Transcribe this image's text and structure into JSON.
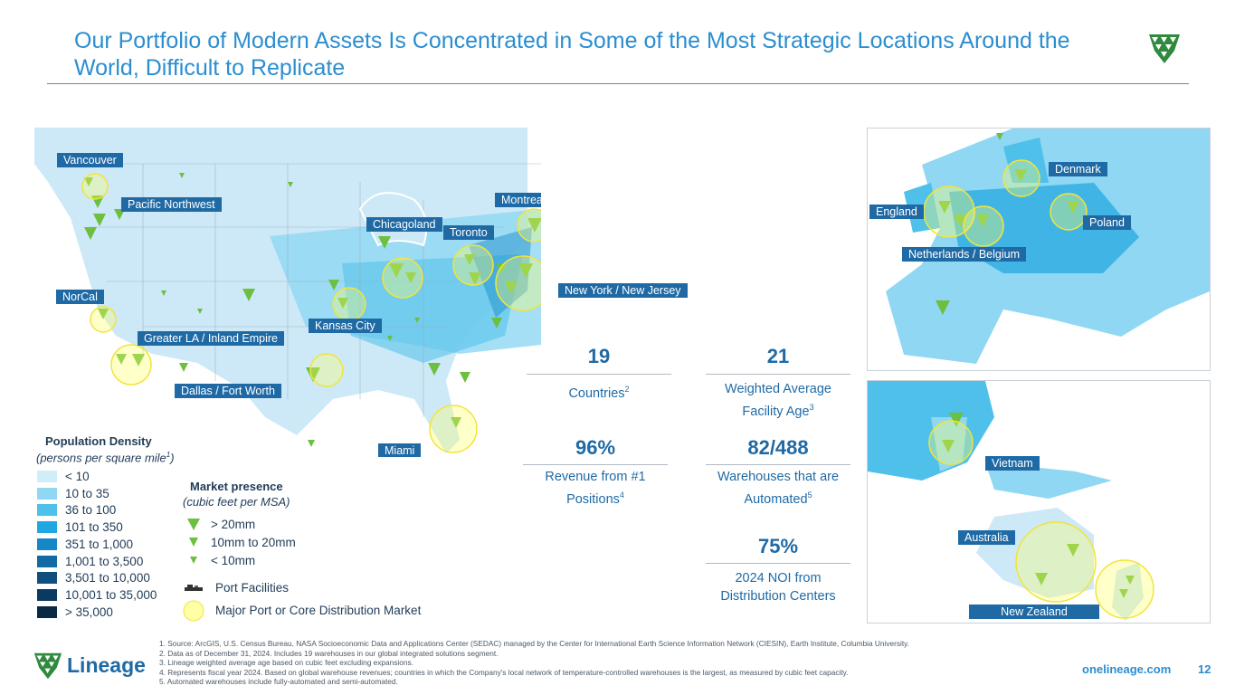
{
  "title": "Our Portfolio of Modern Assets Is Concentrated in Some of the Most Strategic Locations Around the World, Difficult to Replicate",
  "colors": {
    "accent": "#2b8ed0",
    "chip": "#1f6aa5",
    "marker": "#6cbf3f",
    "highlight": "#ffff66"
  },
  "us_labels": [
    "Vancouver",
    "Pacific Northwest",
    "NorCal",
    "Greater LA / Inland Empire",
    "Dallas / Fort Worth",
    "Kansas City",
    "Chicagoland",
    "Toronto",
    "Montreal",
    "New York / New Jersey",
    "Miami"
  ],
  "europe_labels": [
    "England",
    "Denmark",
    "Poland",
    "Netherlands / Belgium"
  ],
  "apac_labels": [
    "Vietnam",
    "Australia",
    "New Zealand"
  ],
  "stats": [
    {
      "value": "19",
      "label": "Countries",
      "sup": "2"
    },
    {
      "value": "21",
      "label": "Weighted Average Facility Age",
      "sup": "3"
    },
    {
      "value": "96%",
      "label": "Revenue from #1 Positions",
      "sup": "4"
    },
    {
      "value": "82/488",
      "label": "Warehouses that are Automated",
      "sup": "5"
    },
    {
      "value": "75%",
      "label": "2024 NOI from Distribution Centers",
      "sup": ""
    }
  ],
  "population_legend": {
    "title": "Population Density",
    "subtitle": "(persons per square mile",
    "subtitle_sup": "1",
    "subtitle_end": ")",
    "bins": [
      {
        "label": "< 10",
        "color": "#cfeefa"
      },
      {
        "label": "10 to 35",
        "color": "#8fd7f2"
      },
      {
        "label": "36 to 100",
        "color": "#4ec0ea"
      },
      {
        "label": "101 to 350",
        "color": "#1ea7e0"
      },
      {
        "label": "351 to 1,000",
        "color": "#1587c6"
      },
      {
        "label": "1,001 to 3,500",
        "color": "#126aa4"
      },
      {
        "label": "3,501 to 10,000",
        "color": "#0e4f80"
      },
      {
        "label": "10,001 to 35,000",
        "color": "#0b3a60"
      },
      {
        "label": "> 35,000",
        "color": "#082a45"
      }
    ]
  },
  "market_legend": {
    "title": "Market presence",
    "subtitle": "(cubic feet per MSA)",
    "items": [
      "> 20mm",
      "10mm to 20mm",
      "< 10mm"
    ],
    "port": "Port Facilities",
    "major": "Major Port or Core Distribution Market"
  },
  "footnotes": [
    "1. Source: ArcGIS, U.S. Census Bureau, NASA Socioeconomic Data and Applications Center (SEDAC) managed by the Center for International Earth Science Information Network (CIESIN), Earth Institute, Columbia University.",
    "2. Data as of December 31, 2024. Includes 19 warehouses in our global integrated solutions segment.",
    "3. Lineage weighted average age based on cubic feet excluding expansions.",
    "4. Represents fiscal year 2024. Based on global warehouse revenues; countries in which the Company's local network of temperature-controlled warehouses is the largest, as measured by cubic feet capacity.",
    "5. Automated warehouses include fully-automated and semi-automated."
  ],
  "brand": "Lineage",
  "url": "onelineage.com",
  "page_number": "12"
}
